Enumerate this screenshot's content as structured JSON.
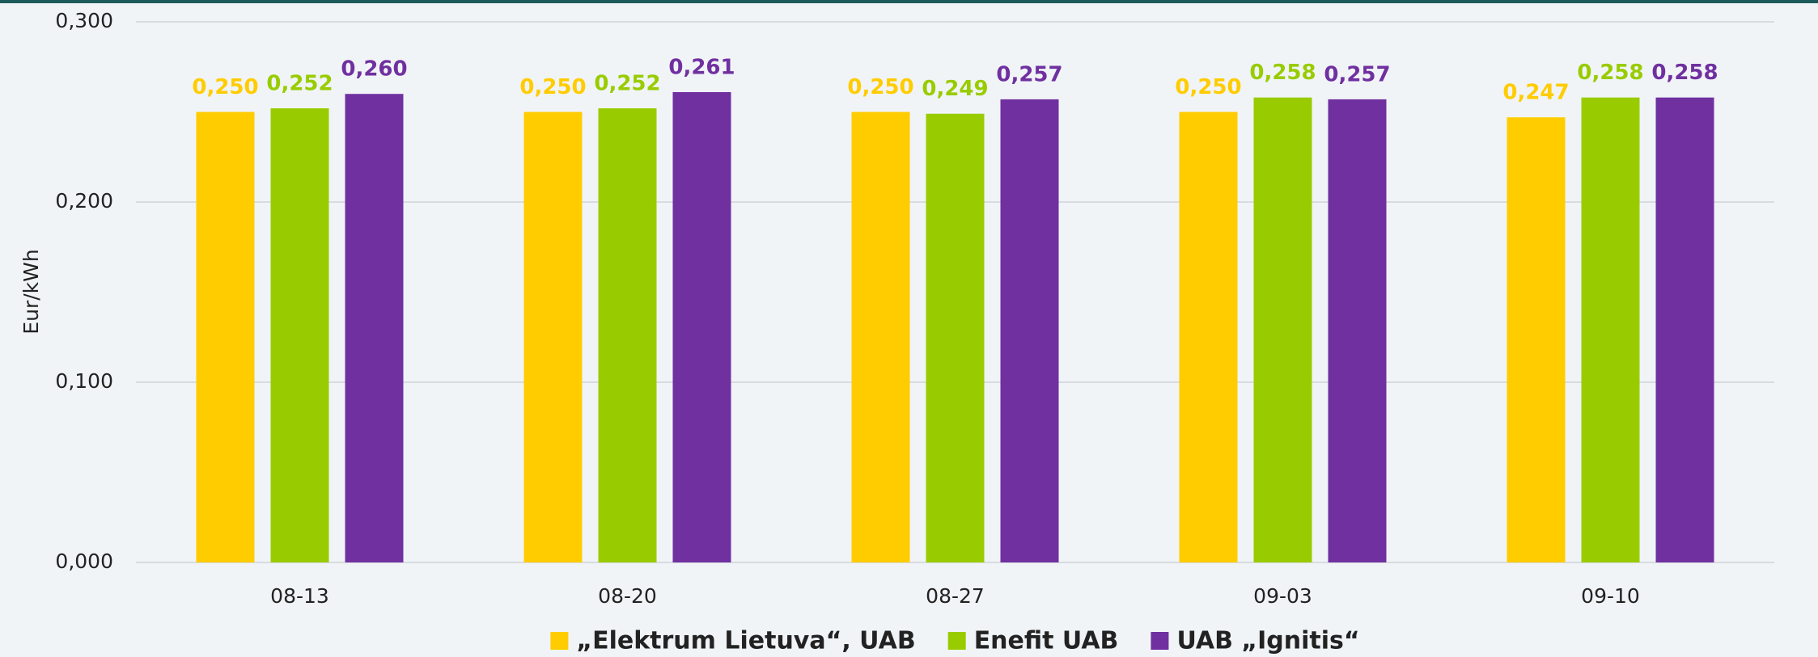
{
  "chart_data": {
    "type": "bar",
    "y_label": "Eur/kWh",
    "categories": [
      "08-13",
      "08-20",
      "08-27",
      "09-03",
      "09-10"
    ],
    "series": [
      {
        "name": "„Elektrum Lietuva“, UAB",
        "color": "#ffcc00",
        "values": [
          0.25,
          0.25,
          0.25,
          0.25,
          0.247
        ],
        "value_labels": [
          "0,250",
          "0,250",
          "0,250",
          "0,250",
          "0,247"
        ]
      },
      {
        "name": "Enefit UAB",
        "color": "#99cc00",
        "values": [
          0.252,
          0.252,
          0.249,
          0.258,
          0.258
        ],
        "value_labels": [
          "0,252",
          "0,252",
          "0,249",
          "0,258",
          "0,258"
        ]
      },
      {
        "name": "UAB „Ignitis“",
        "color": "#7030a0",
        "values": [
          0.26,
          0.261,
          0.257,
          0.257,
          0.258
        ],
        "value_labels": [
          "0,260",
          "0,261",
          "0,257",
          "0,257",
          "0,258"
        ]
      }
    ],
    "ylim": [
      0,
      0.3
    ],
    "yticks": [
      {
        "value": 0,
        "label": "0,000"
      },
      {
        "value": 0.1,
        "label": "0,100"
      },
      {
        "value": 0.2,
        "label": "0,200"
      },
      {
        "value": 0.3,
        "label": "0,300"
      }
    ],
    "grid": true,
    "legend": "bottom"
  }
}
